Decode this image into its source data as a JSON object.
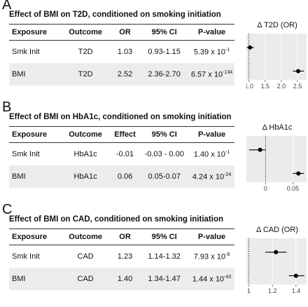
{
  "panels": [
    {
      "letter": "A",
      "title": "Effect of BMI on T2D, conditioned on smoking initiation",
      "headers": [
        "Exposure",
        "Outcome",
        "OR",
        "95% CI",
        "P-value"
      ],
      "rows": [
        {
          "exposure": "Smk Init",
          "outcome": "T2D",
          "estimate": "1.03",
          "ci": "0.93-1.15",
          "p_base": "5.39 x 10",
          "p_exp": "-1"
        },
        {
          "exposure": "BMI",
          "outcome": "T2D",
          "estimate": "2.52",
          "ci": "2.36-2.70",
          "p_base": "6.57 x 10",
          "p_exp": "-134"
        }
      ]
    },
    {
      "letter": "B",
      "title": "Effect of BMI on HbA1c, conditioned on smoking initiation",
      "headers": [
        "Exposure",
        "Outcome",
        "Effect",
        "95% CI",
        "P-value"
      ],
      "rows": [
        {
          "exposure": "Smk Init",
          "outcome": "HbA1c",
          "estimate": "-0.01",
          "ci": "-0.03 - 0.00",
          "p_base": "1.40 x 10",
          "p_exp": "-1"
        },
        {
          "exposure": "BMI",
          "outcome": "HbA1c",
          "estimate": "0.06",
          "ci": "0.05-0.07",
          "p_base": "4.24 x 10",
          "p_exp": "-24"
        }
      ]
    },
    {
      "letter": "C",
      "title": "Effect of BMI on CAD, conditioned on smoking initiation",
      "headers": [
        "Exposure",
        "Outcome",
        "OR",
        "95% CI",
        "P-value"
      ],
      "rows": [
        {
          "exposure": "Smk Init",
          "outcome": "CAD",
          "estimate": "1.23",
          "ci": "1.14-1.32",
          "p_base": "7.93 x 10",
          "p_exp": "-8"
        },
        {
          "exposure": "BMI",
          "outcome": "CAD",
          "estimate": "1.40",
          "ci": "1.34-1.47",
          "p_base": "1.44 x 10",
          "p_exp": "-43"
        }
      ]
    }
  ],
  "chart_data": [
    {
      "type": "scatter",
      "title": "Δ T2D (OR)",
      "xlim": [
        0.92,
        2.78
      ],
      "xticks": [
        1.0,
        1.5,
        2.0,
        2.5
      ],
      "xtick_labels": [
        "1.0",
        "1.5",
        "2.0",
        "2.5"
      ],
      "reference_line": 1.0,
      "points": [
        {
          "label": "Smk Init",
          "value": 1.03,
          "lo": 0.93,
          "hi": 1.15
        },
        {
          "label": "BMI",
          "value": 2.52,
          "lo": 2.36,
          "hi": 2.7
        }
      ]
    },
    {
      "type": "scatter",
      "title": "Δ HbA1c",
      "xlim": [
        -0.035,
        0.075
      ],
      "xticks": [
        0,
        0.05
      ],
      "xtick_labels": [
        "0",
        "0.05"
      ],
      "reference_line": 0,
      "points": [
        {
          "label": "Smk Init",
          "value": -0.01,
          "lo": -0.03,
          "hi": 0.0
        },
        {
          "label": "BMI",
          "value": 0.06,
          "lo": 0.05,
          "hi": 0.07
        }
      ]
    },
    {
      "type": "scatter",
      "title": "Δ CAD (OR)",
      "xlim": [
        0.98,
        1.49
      ],
      "xticks": [
        1.0,
        1.2,
        1.4
      ],
      "xtick_labels": [
        "1",
        "1.2",
        "1.4"
      ],
      "reference_line": 1.0,
      "points": [
        {
          "label": "Smk Init",
          "value": 1.23,
          "lo": 1.14,
          "hi": 1.32
        },
        {
          "label": "BMI",
          "value": 1.4,
          "lo": 1.34,
          "hi": 1.47
        }
      ]
    }
  ],
  "colors": {
    "plot_bg": "#ebebeb",
    "grid": "#ffffff",
    "point": "#000000",
    "row_alt": "#ececec"
  }
}
